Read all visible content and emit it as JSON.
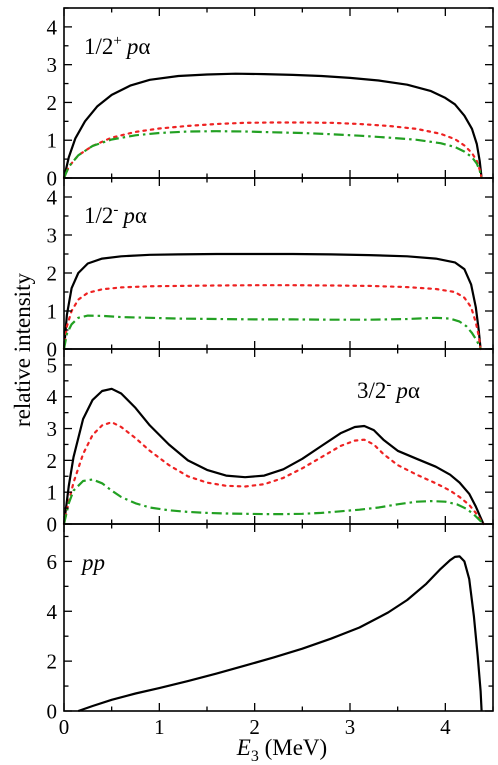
{
  "chart_data": {
    "type": "line",
    "ylabel": "relative intensity",
    "xlabel_symbol": "E",
    "xlabel_sub": "3",
    "xlabel_unit": " (MeV)",
    "xlim": [
      0,
      4.5
    ],
    "x_ticks": [
      0,
      1,
      2,
      3,
      4
    ],
    "x_tick_labels": [
      "0",
      "1",
      "2",
      "3",
      "4"
    ],
    "colors": {
      "solid": "#000000",
      "dotted": "#ee2222",
      "dashdot": "#22a022"
    },
    "panels": [
      {
        "label_main": "1/2",
        "label_sup": "+",
        "label_tail": "pα",
        "ylim": [
          0,
          4.5
        ],
        "y_ticks": [
          0,
          1,
          2,
          3,
          4
        ],
        "y_tick_labels": [
          "0",
          "1",
          "2",
          "3",
          "4"
        ],
        "series": [
          {
            "style": "solid",
            "x": [
              0.0,
              0.05,
              0.12,
              0.22,
              0.35,
              0.5,
              0.7,
              0.9,
              1.2,
              1.5,
              1.8,
              2.1,
              2.4,
              2.7,
              3.0,
              3.3,
              3.6,
              3.85,
              4.0,
              4.1,
              4.2,
              4.28,
              4.33,
              4.36,
              4.38
            ],
            "y": [
              0.0,
              0.55,
              1.05,
              1.5,
              1.9,
              2.2,
              2.45,
              2.6,
              2.7,
              2.74,
              2.76,
              2.75,
              2.73,
              2.7,
              2.65,
              2.58,
              2.47,
              2.3,
              2.12,
              1.95,
              1.65,
              1.3,
              0.9,
              0.45,
              0.0
            ]
          },
          {
            "style": "dotted",
            "x": [
              0.0,
              0.05,
              0.15,
              0.3,
              0.5,
              0.75,
              1.0,
              1.3,
              1.6,
              1.9,
              2.2,
              2.5,
              2.8,
              3.1,
              3.4,
              3.7,
              3.95,
              4.1,
              4.2,
              4.28,
              4.33,
              4.36,
              4.38
            ],
            "y": [
              0.0,
              0.3,
              0.6,
              0.85,
              1.07,
              1.22,
              1.31,
              1.38,
              1.43,
              1.46,
              1.47,
              1.47,
              1.46,
              1.43,
              1.38,
              1.3,
              1.17,
              1.03,
              0.86,
              0.66,
              0.45,
              0.22,
              0.0
            ]
          },
          {
            "style": "dashdot",
            "x": [
              0.0,
              0.05,
              0.15,
              0.3,
              0.5,
              0.75,
              1.0,
              1.3,
              1.6,
              1.9,
              2.2,
              2.5,
              2.8,
              3.1,
              3.4,
              3.7,
              3.95,
              4.1,
              4.2,
              4.28,
              4.33,
              4.36,
              4.38
            ],
            "y": [
              0.0,
              0.3,
              0.6,
              0.85,
              1.02,
              1.13,
              1.19,
              1.23,
              1.24,
              1.23,
              1.21,
              1.19,
              1.16,
              1.12,
              1.07,
              1.01,
              0.92,
              0.82,
              0.7,
              0.55,
              0.38,
              0.2,
              0.0
            ]
          }
        ]
      },
      {
        "label_main": "1/2",
        "label_sup": "-",
        "label_tail": "pα",
        "ylim": [
          0,
          4.5
        ],
        "y_ticks": [
          0,
          1,
          2,
          3,
          4
        ],
        "y_tick_labels": [
          "0",
          "1",
          "2",
          "3",
          "4"
        ],
        "series": [
          {
            "style": "solid",
            "x": [
              0.0,
              0.03,
              0.08,
              0.15,
              0.25,
              0.4,
              0.6,
              0.9,
              1.2,
              1.6,
              2.0,
              2.4,
              2.8,
              3.2,
              3.6,
              3.9,
              4.1,
              4.2,
              4.27,
              4.32,
              4.35,
              4.37
            ],
            "y": [
              0.0,
              0.9,
              1.6,
              2.0,
              2.25,
              2.38,
              2.44,
              2.48,
              2.49,
              2.5,
              2.5,
              2.5,
              2.49,
              2.47,
              2.44,
              2.38,
              2.28,
              2.1,
              1.7,
              1.1,
              0.5,
              0.0
            ]
          },
          {
            "style": "dotted",
            "x": [
              0.0,
              0.03,
              0.08,
              0.15,
              0.25,
              0.4,
              0.6,
              0.9,
              1.2,
              1.6,
              2.0,
              2.4,
              2.8,
              3.2,
              3.6,
              3.9,
              4.1,
              4.2,
              4.27,
              4.32,
              4.35,
              4.37
            ],
            "y": [
              0.0,
              0.6,
              1.0,
              1.3,
              1.48,
              1.57,
              1.62,
              1.65,
              1.66,
              1.67,
              1.68,
              1.68,
              1.67,
              1.66,
              1.63,
              1.58,
              1.5,
              1.35,
              1.1,
              0.7,
              0.35,
              0.0
            ]
          },
          {
            "style": "dashdot",
            "x": [
              0.0,
              0.03,
              0.08,
              0.15,
              0.25,
              0.4,
              0.6,
              0.9,
              1.2,
              1.6,
              2.0,
              2.4,
              2.8,
              3.2,
              3.6,
              3.9,
              4.05,
              4.15,
              4.22,
              4.28,
              4.33,
              4.37
            ],
            "y": [
              0.0,
              0.4,
              0.65,
              0.82,
              0.88,
              0.87,
              0.84,
              0.82,
              0.8,
              0.79,
              0.78,
              0.78,
              0.77,
              0.77,
              0.79,
              0.82,
              0.8,
              0.72,
              0.6,
              0.42,
              0.22,
              0.0
            ]
          }
        ]
      },
      {
        "label_main": "3/2",
        "label_sup": "-",
        "label_tail": "pα",
        "ylim": [
          0,
          5.5
        ],
        "y_ticks": [
          0,
          1,
          2,
          3,
          4,
          5
        ],
        "y_tick_labels": [
          "0",
          "1",
          "2",
          "3",
          "4",
          "5"
        ],
        "series": [
          {
            "style": "solid",
            "x": [
              0.0,
              0.05,
              0.1,
              0.2,
              0.3,
              0.4,
              0.5,
              0.6,
              0.75,
              0.9,
              1.1,
              1.3,
              1.5,
              1.7,
              1.9,
              2.1,
              2.3,
              2.5,
              2.7,
              2.9,
              3.05,
              3.15,
              3.25,
              3.35,
              3.5,
              3.7,
              3.9,
              4.05,
              4.15,
              4.25,
              4.32,
              4.37,
              4.4
            ],
            "y": [
              0.0,
              1.2,
              2.1,
              3.3,
              3.9,
              4.18,
              4.25,
              4.1,
              3.65,
              3.1,
              2.5,
              2.0,
              1.7,
              1.52,
              1.47,
              1.52,
              1.72,
              2.05,
              2.45,
              2.85,
              3.05,
              3.08,
              2.95,
              2.65,
              2.3,
              2.05,
              1.8,
              1.55,
              1.3,
              0.95,
              0.55,
              0.2,
              0.0
            ]
          },
          {
            "style": "dotted",
            "x": [
              0.0,
              0.05,
              0.1,
              0.2,
              0.3,
              0.4,
              0.5,
              0.6,
              0.75,
              0.9,
              1.1,
              1.3,
              1.5,
              1.7,
              1.9,
              2.1,
              2.3,
              2.5,
              2.7,
              2.9,
              3.05,
              3.15,
              3.25,
              3.35,
              3.5,
              3.7,
              3.9,
              4.05,
              4.15,
              4.25,
              4.32,
              4.37,
              4.4
            ],
            "y": [
              0.0,
              0.7,
              1.3,
              2.2,
              2.8,
              3.1,
              3.2,
              3.05,
              2.7,
              2.3,
              1.85,
              1.5,
              1.3,
              1.2,
              1.18,
              1.25,
              1.45,
              1.75,
              2.1,
              2.45,
              2.62,
              2.65,
              2.5,
              2.2,
              1.85,
              1.55,
              1.28,
              1.05,
              0.85,
              0.6,
              0.35,
              0.12,
              0.0
            ]
          },
          {
            "style": "dashdot",
            "x": [
              0.0,
              0.05,
              0.1,
              0.2,
              0.3,
              0.4,
              0.5,
              0.6,
              0.75,
              0.9,
              1.1,
              1.3,
              1.5,
              1.7,
              1.9,
              2.1,
              2.3,
              2.5,
              2.7,
              2.9,
              3.1,
              3.3,
              3.5,
              3.7,
              3.85,
              4.0,
              4.12,
              4.22,
              4.3,
              4.36,
              4.4
            ],
            "y": [
              0.0,
              0.65,
              1.05,
              1.35,
              1.4,
              1.28,
              1.05,
              0.85,
              0.65,
              0.52,
              0.43,
              0.38,
              0.35,
              0.33,
              0.32,
              0.31,
              0.31,
              0.32,
              0.35,
              0.4,
              0.45,
              0.52,
              0.62,
              0.7,
              0.72,
              0.7,
              0.62,
              0.48,
              0.3,
              0.12,
              0.0
            ]
          }
        ]
      },
      {
        "label_main": "",
        "label_sup": "",
        "label_tail": "pp",
        "ylim": [
          0,
          7.5
        ],
        "y_ticks": [
          0,
          2,
          4,
          6
        ],
        "y_tick_labels": [
          "0",
          "2",
          "4",
          "6"
        ],
        "series": [
          {
            "style": "solid",
            "x": [
              0.15,
              0.3,
              0.5,
              0.75,
              1.0,
              1.3,
              1.6,
              1.9,
              2.2,
              2.5,
              2.8,
              3.1,
              3.4,
              3.6,
              3.8,
              3.95,
              4.05,
              4.1,
              4.15,
              4.2,
              4.25,
              4.3,
              4.34,
              4.37,
              4.38
            ],
            "y": [
              0.0,
              0.2,
              0.45,
              0.7,
              0.92,
              1.2,
              1.5,
              1.82,
              2.15,
              2.5,
              2.9,
              3.35,
              3.95,
              4.45,
              5.1,
              5.7,
              6.05,
              6.18,
              6.2,
              6.0,
              5.3,
              3.8,
              2.2,
              0.8,
              0.0
            ]
          }
        ]
      }
    ]
  }
}
